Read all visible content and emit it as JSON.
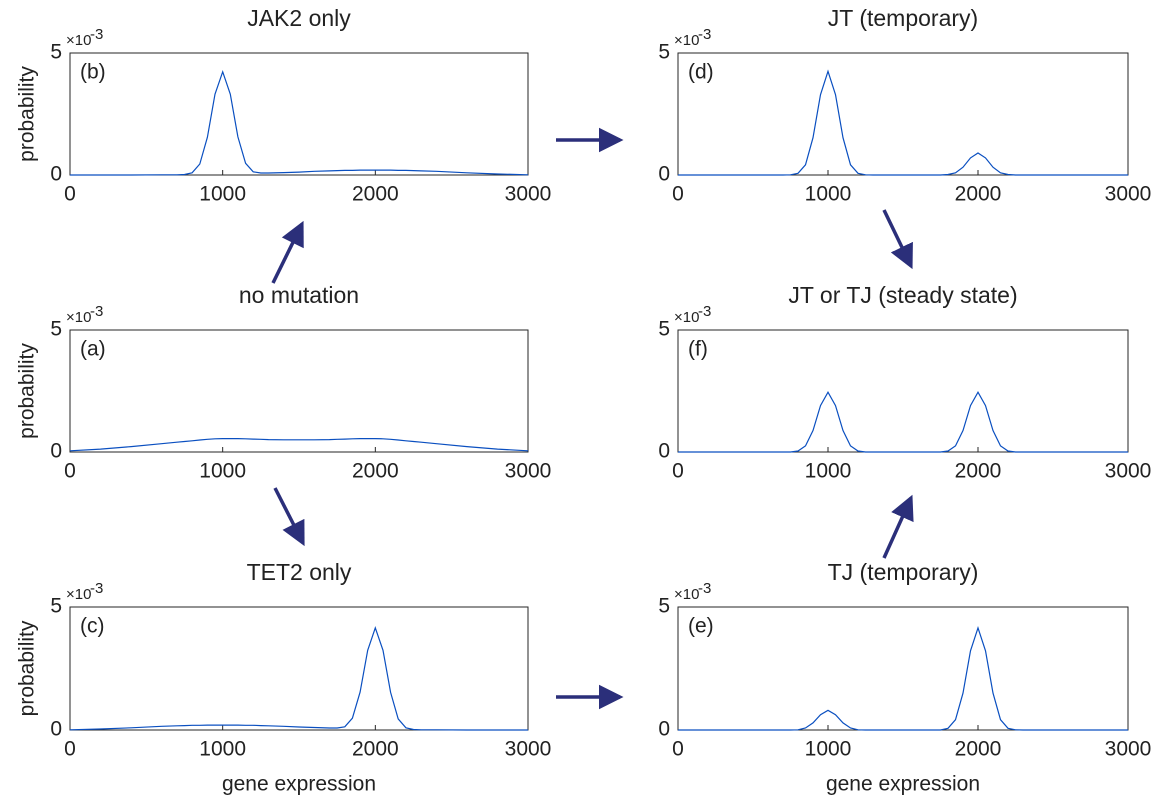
{
  "chart_data": [
    {
      "type": "line",
      "title": "JAK2 only",
      "panel_label": "(b)",
      "ylabel": "probability",
      "yscale_base": "×10",
      "yscale_exponent": "-3",
      "x": [
        0,
        200,
        400,
        600,
        700,
        750,
        800,
        850,
        900,
        950,
        1000,
        1050,
        1100,
        1150,
        1200,
        1250,
        1300,
        1400,
        1500,
        1600,
        1700,
        1750,
        1800,
        1850,
        1900,
        1950,
        2000,
        2050,
        2100,
        2150,
        2200,
        2250,
        2300,
        2400,
        2600,
        2800,
        3000
      ],
      "values": [
        0,
        0,
        0,
        0.01,
        0.01,
        0.02,
        0.09,
        0.45,
        1.55,
        3.31,
        4.23,
        3.31,
        1.56,
        0.48,
        0.13,
        0.08,
        0.08,
        0.1,
        0.12,
        0.15,
        0.17,
        0.18,
        0.19,
        0.19,
        0.2,
        0.2,
        0.2,
        0.2,
        0.2,
        0.19,
        0.19,
        0.18,
        0.17,
        0.15,
        0.09,
        0.04,
        0.01
      ],
      "color": "#0a4fc0",
      "xlim": [
        0,
        3000
      ],
      "xticks": [
        0,
        1000,
        2000,
        3000
      ],
      "ylim": [
        0,
        5
      ],
      "yticks": [
        0,
        5
      ]
    },
    {
      "type": "line",
      "title": "JT (temporary)",
      "panel_label": "(d)",
      "yscale_base": "×10",
      "yscale_exponent": "-3",
      "x": [
        0,
        200,
        400,
        600,
        700,
        750,
        800,
        850,
        900,
        950,
        1000,
        1050,
        1100,
        1150,
        1200,
        1250,
        1300,
        1400,
        1500,
        1600,
        1700,
        1750,
        1800,
        1850,
        1900,
        1950,
        2000,
        2050,
        2100,
        2150,
        2200,
        2250,
        2300,
        2400,
        2600,
        2800,
        3000
      ],
      "values": [
        0,
        0,
        0,
        0,
        0,
        0.01,
        0.07,
        0.42,
        1.53,
        3.29,
        4.25,
        3.29,
        1.53,
        0.42,
        0.07,
        0.01,
        0,
        0,
        0,
        0,
        0,
        0,
        0.02,
        0.09,
        0.32,
        0.7,
        0.9,
        0.7,
        0.32,
        0.09,
        0.02,
        0,
        0,
        0,
        0,
        0,
        0
      ],
      "color": "#0a4fc0",
      "xlim": [
        0,
        3000
      ],
      "xticks": [
        0,
        1000,
        2000,
        3000
      ],
      "ylim": [
        0,
        5
      ],
      "yticks": [
        0,
        5
      ]
    },
    {
      "type": "line",
      "title": "no mutation",
      "panel_label": "(a)",
      "ylabel": "probability",
      "yscale_base": "×10",
      "yscale_exponent": "-3",
      "x": [
        0,
        200,
        400,
        600,
        700,
        750,
        800,
        850,
        900,
        950,
        1000,
        1050,
        1100,
        1150,
        1200,
        1250,
        1300,
        1400,
        1500,
        1600,
        1700,
        1750,
        1800,
        1850,
        1900,
        1950,
        2000,
        2050,
        2100,
        2150,
        2200,
        2250,
        2300,
        2400,
        2600,
        2800,
        3000
      ],
      "values": [
        0.05,
        0.12,
        0.22,
        0.34,
        0.4,
        0.43,
        0.46,
        0.49,
        0.52,
        0.54,
        0.55,
        0.55,
        0.55,
        0.54,
        0.53,
        0.52,
        0.51,
        0.5,
        0.5,
        0.5,
        0.51,
        0.52,
        0.53,
        0.54,
        0.55,
        0.55,
        0.55,
        0.54,
        0.52,
        0.49,
        0.46,
        0.43,
        0.4,
        0.34,
        0.22,
        0.12,
        0.05
      ],
      "color": "#0a4fc0",
      "xlim": [
        0,
        3000
      ],
      "xticks": [
        0,
        1000,
        2000,
        3000
      ],
      "ylim": [
        0,
        5
      ],
      "yticks": [
        0,
        5
      ]
    },
    {
      "type": "line",
      "title": "JT or TJ (steady state)",
      "panel_label": "(f)",
      "yscale_base": "×10",
      "yscale_exponent": "-3",
      "x": [
        0,
        200,
        400,
        600,
        700,
        750,
        800,
        850,
        900,
        950,
        1000,
        1050,
        1100,
        1150,
        1200,
        1250,
        1300,
        1400,
        1500,
        1600,
        1700,
        1750,
        1800,
        1850,
        1900,
        1950,
        2000,
        2050,
        2100,
        2150,
        2200,
        2250,
        2300,
        2400,
        2600,
        2800,
        3000
      ],
      "values": [
        0,
        0,
        0,
        0,
        0,
        0,
        0.04,
        0.25,
        0.88,
        1.9,
        2.45,
        1.9,
        0.88,
        0.25,
        0.04,
        0,
        0,
        0,
        0,
        0,
        0,
        0,
        0.04,
        0.25,
        0.88,
        1.9,
        2.45,
        1.9,
        0.88,
        0.25,
        0.04,
        0,
        0,
        0,
        0,
        0,
        0
      ],
      "color": "#0a4fc0",
      "xlim": [
        0,
        3000
      ],
      "xticks": [
        0,
        1000,
        2000,
        3000
      ],
      "ylim": [
        0,
        5
      ],
      "yticks": [
        0,
        5
      ]
    },
    {
      "type": "line",
      "title": "TET2 only",
      "panel_label": "(c)",
      "ylabel": "probability",
      "xlabel": "gene expression",
      "yscale_base": "×10",
      "yscale_exponent": "-3",
      "x": [
        0,
        200,
        400,
        600,
        700,
        750,
        800,
        850,
        900,
        950,
        1000,
        1050,
        1100,
        1150,
        1200,
        1250,
        1300,
        1400,
        1500,
        1600,
        1700,
        1750,
        1800,
        1850,
        1900,
        1950,
        2000,
        2050,
        2100,
        2150,
        2200,
        2250,
        2300,
        2400,
        2600,
        2800,
        3000
      ],
      "values": [
        0.01,
        0.04,
        0.09,
        0.15,
        0.17,
        0.18,
        0.19,
        0.19,
        0.2,
        0.2,
        0.2,
        0.2,
        0.2,
        0.19,
        0.19,
        0.18,
        0.17,
        0.15,
        0.12,
        0.1,
        0.08,
        0.08,
        0.13,
        0.48,
        1.54,
        3.24,
        4.15,
        3.24,
        1.53,
        0.45,
        0.09,
        0.02,
        0.01,
        0.01,
        0,
        0,
        0
      ],
      "color": "#0a4fc0",
      "xlim": [
        0,
        3000
      ],
      "xticks": [
        0,
        1000,
        2000,
        3000
      ],
      "ylim": [
        0,
        5
      ],
      "yticks": [
        0,
        5
      ]
    },
    {
      "type": "line",
      "title": "TJ (temporary)",
      "panel_label": "(e)",
      "xlabel": "gene expression",
      "yscale_base": "×10",
      "yscale_exponent": "-3",
      "x": [
        0,
        200,
        400,
        600,
        700,
        750,
        800,
        850,
        900,
        950,
        1000,
        1050,
        1100,
        1150,
        1200,
        1250,
        1300,
        1400,
        1500,
        1600,
        1700,
        1750,
        1800,
        1850,
        1900,
        1950,
        2000,
        2050,
        2100,
        2150,
        2200,
        2250,
        2300,
        2400,
        2600,
        2800,
        3000
      ],
      "values": [
        0,
        0,
        0,
        0,
        0,
        0,
        0.01,
        0.08,
        0.29,
        0.62,
        0.8,
        0.62,
        0.29,
        0.08,
        0.01,
        0,
        0,
        0,
        0,
        0,
        0,
        0,
        0.07,
        0.42,
        1.5,
        3.22,
        4.15,
        3.22,
        1.5,
        0.42,
        0.07,
        0.01,
        0,
        0,
        0,
        0,
        0
      ],
      "color": "#0a4fc0",
      "xlim": [
        0,
        3000
      ],
      "xticks": [
        0,
        1000,
        2000,
        3000
      ],
      "ylim": [
        0,
        5
      ],
      "yticks": [
        0,
        5
      ]
    }
  ]
}
